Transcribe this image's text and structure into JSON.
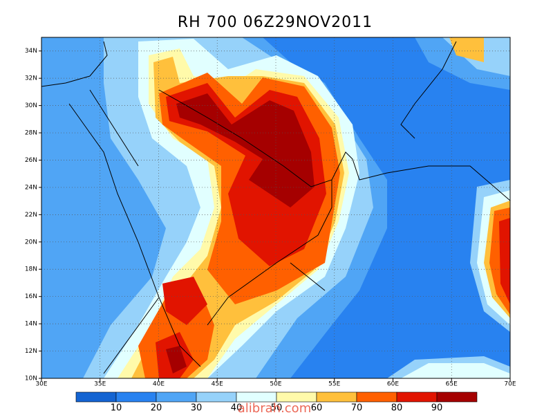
{
  "title": "RH 700 06Z29NOV2011",
  "map": {
    "lonlim": [
      30,
      70
    ],
    "latlim": [
      10,
      35
    ],
    "lon_ticks": [
      {
        "value": 30,
        "label": "30E"
      },
      {
        "value": 35,
        "label": "35E"
      },
      {
        "value": 40,
        "label": "40E"
      },
      {
        "value": 45,
        "label": "45E"
      },
      {
        "value": 50,
        "label": "50E"
      },
      {
        "value": 55,
        "label": "55E"
      },
      {
        "value": 60,
        "label": "60E"
      },
      {
        "value": 65,
        "label": "65E"
      },
      {
        "value": 70,
        "label": "70E"
      }
    ],
    "lat_ticks": [
      {
        "value": 10,
        "label": "10N"
      },
      {
        "value": 12,
        "label": "12N"
      },
      {
        "value": 14,
        "label": "14N"
      },
      {
        "value": 16,
        "label": "16N"
      },
      {
        "value": 18,
        "label": "18N"
      },
      {
        "value": 20,
        "label": "20N"
      },
      {
        "value": 22,
        "label": "22N"
      },
      {
        "value": 24,
        "label": "24N"
      },
      {
        "value": 26,
        "label": "26N"
      },
      {
        "value": 28,
        "label": "28N"
      },
      {
        "value": 30,
        "label": "30N"
      },
      {
        "value": 32,
        "label": "32N"
      },
      {
        "value": 34,
        "label": "34N"
      }
    ],
    "grid": true
  },
  "colorbar": {
    "levels": [
      10,
      20,
      30,
      40,
      50,
      60,
      70,
      80,
      90
    ],
    "colors": [
      "#1464d2",
      "#2882f0",
      "#50a5f5",
      "#96d2fa",
      "#e1ffff",
      "#fffaaa",
      "#ffc03c",
      "#ff6000",
      "#e11400",
      "#a50000"
    ]
  },
  "watermark": "alibrah.com"
}
